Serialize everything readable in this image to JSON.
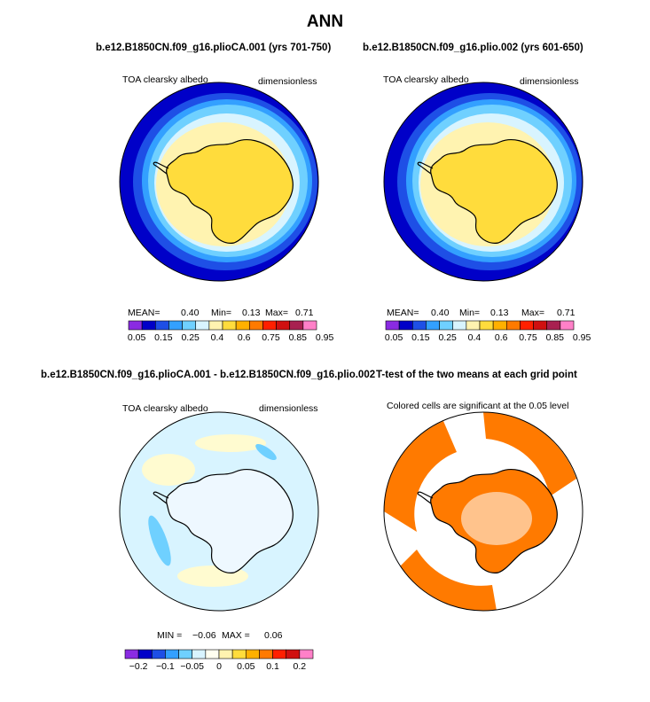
{
  "title": "ANN",
  "panels": [
    {
      "title": "b.e12.B1850CN.f09_g16.plioCA.001 (yrs 701-750)",
      "left_label": "TOA clearsky albedo",
      "right_label": "dimensionless",
      "stats": {
        "mean_label": "MEAN=",
        "mean": "0.40",
        "min_label": "Min=",
        "min": "0.13",
        "max_label": "Max=",
        "max": "0.71"
      },
      "colorbar": {
        "colors": [
          "#8a2be2",
          "#0000c8",
          "#1e4fe6",
          "#33a0ff",
          "#6fd0ff",
          "#d8f4ff",
          "#fff3b0",
          "#ffdc3c",
          "#ffb000",
          "#ff7a00",
          "#ff2000",
          "#d01010",
          "#a82050",
          "#ff80c8"
        ],
        "labels": [
          "0.05",
          "0.15",
          "0.25",
          "0.4",
          "0.6",
          "0.75",
          "0.85",
          "0.95"
        ]
      }
    },
    {
      "title": "b.e12.B1850CN.f09_g16.plio.002 (yrs 601-650)",
      "left_label": "TOA clearsky albedo",
      "right_label": "dimensionless",
      "stats": {
        "mean_label": "MEAN=",
        "mean": "0.40",
        "min_label": "Min=",
        "min": "0.13",
        "max_label": "Max=",
        "max": "0.71"
      },
      "colorbar": {
        "colors": [
          "#8a2be2",
          "#0000c8",
          "#1e4fe6",
          "#33a0ff",
          "#6fd0ff",
          "#d8f4ff",
          "#fff3b0",
          "#ffdc3c",
          "#ffb000",
          "#ff7a00",
          "#ff2000",
          "#d01010",
          "#a82050",
          "#ff80c8"
        ],
        "labels": [
          "0.05",
          "0.15",
          "0.25",
          "0.4",
          "0.6",
          "0.75",
          "0.85",
          "0.95"
        ]
      }
    },
    {
      "title": "b.e12.B1850CN.f09_g16.plioCA.001 - b.e12.B1850CN.f09_g16.plio.002",
      "left_label": "TOA clearsky albedo",
      "right_label": "dimensionless",
      "stats": {
        "min_label": "MIN =",
        "min": "−0.06",
        "max_label": "MAX =",
        "max": "0.06"
      },
      "colorbar": {
        "colors": [
          "#8a2be2",
          "#0000c8",
          "#1e4fe6",
          "#33a0ff",
          "#6fd0ff",
          "#d8f4ff",
          "#fffff0",
          "#fff3b0",
          "#ffdc3c",
          "#ffb000",
          "#ff7a00",
          "#ff2000",
          "#d01010",
          "#ff80c8"
        ],
        "labels": [
          "−0.2",
          "−0.1",
          "−0.05",
          "0",
          "0.05",
          "0.1",
          "0.2"
        ]
      }
    },
    {
      "title": "T-test of the two means at each grid point",
      "subtitle": "Colored cells are significant at the 0.05 level",
      "color": "#ff7a00"
    }
  ],
  "chart_data": {
    "type": "heatmap",
    "projection": "south polar stereographic",
    "panels": [
      {
        "variable": "TOA clearsky albedo",
        "units": "dimensionless",
        "mean": 0.4,
        "min": 0.13,
        "max": 0.71,
        "levels": [
          0.05,
          0.15,
          0.25,
          0.4,
          0.6,
          0.75,
          0.85,
          0.95
        ]
      },
      {
        "variable": "TOA clearsky albedo",
        "units": "dimensionless",
        "mean": 0.4,
        "min": 0.13,
        "max": 0.71,
        "levels": [
          0.05,
          0.15,
          0.25,
          0.4,
          0.6,
          0.75,
          0.85,
          0.95
        ]
      },
      {
        "variable": "TOA clearsky albedo",
        "units": "dimensionless",
        "min": -0.06,
        "max": 0.06,
        "levels": [
          -0.2,
          -0.1,
          -0.05,
          0,
          0.05,
          0.1,
          0.2
        ]
      },
      {
        "test": "T-test",
        "significance": 0.05
      }
    ]
  }
}
